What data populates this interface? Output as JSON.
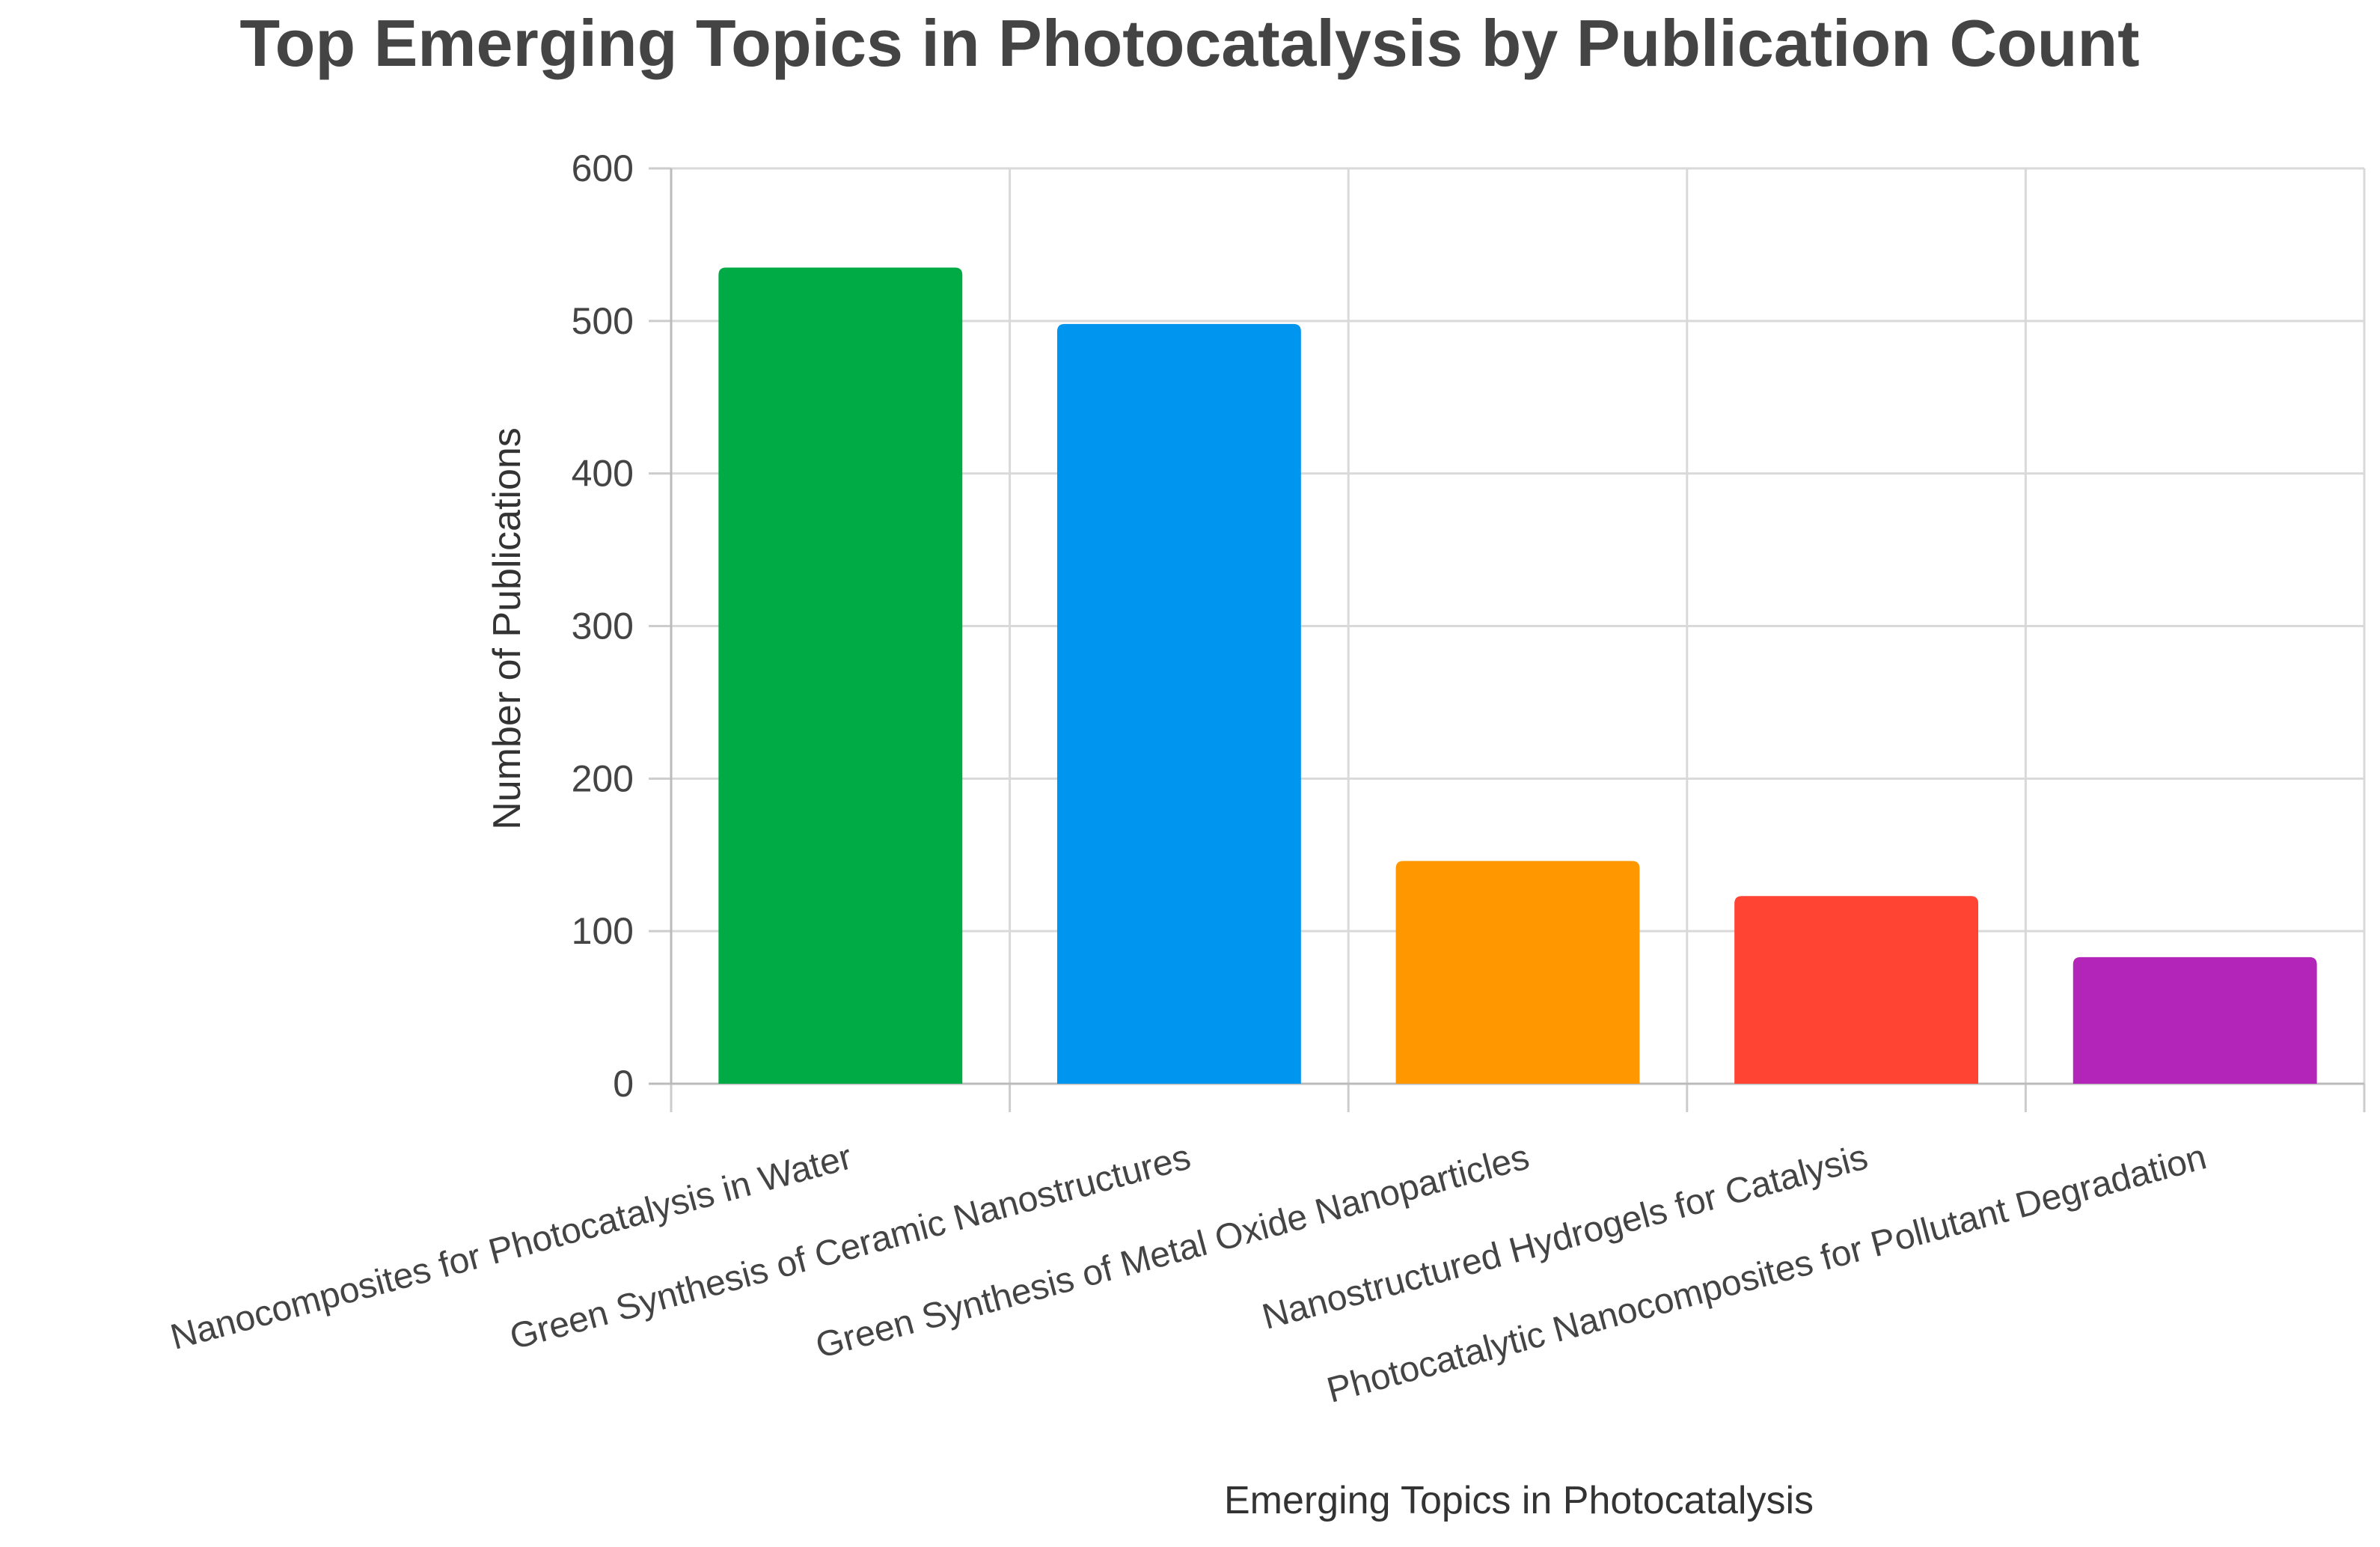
{
  "chart_data": {
    "type": "bar",
    "title": "Top Emerging Topics in Photocatalysis by Publication Count",
    "xlabel": "Emerging Topics in Photocatalysis",
    "ylabel": "Number of Publications",
    "categories": [
      "Nanocomposites for Photocatalysis in Water",
      "Green Synthesis of Ceramic Nanostructures",
      "Green Synthesis of Metal Oxide Nanoparticles",
      "Nanostructured Hydrogels for Catalysis",
      "Photocatalytic Nanocomposites for Pollutant Degradation"
    ],
    "values": [
      535,
      498,
      146,
      123,
      83
    ],
    "colors": [
      "#00AA44",
      "#0096F0",
      "#FF9800",
      "#FF4433",
      "#B324B8"
    ],
    "ylim": [
      0,
      600
    ],
    "yticks": [
      0,
      100,
      200,
      300,
      400,
      500,
      600
    ],
    "grid": true,
    "legend": "none"
  }
}
